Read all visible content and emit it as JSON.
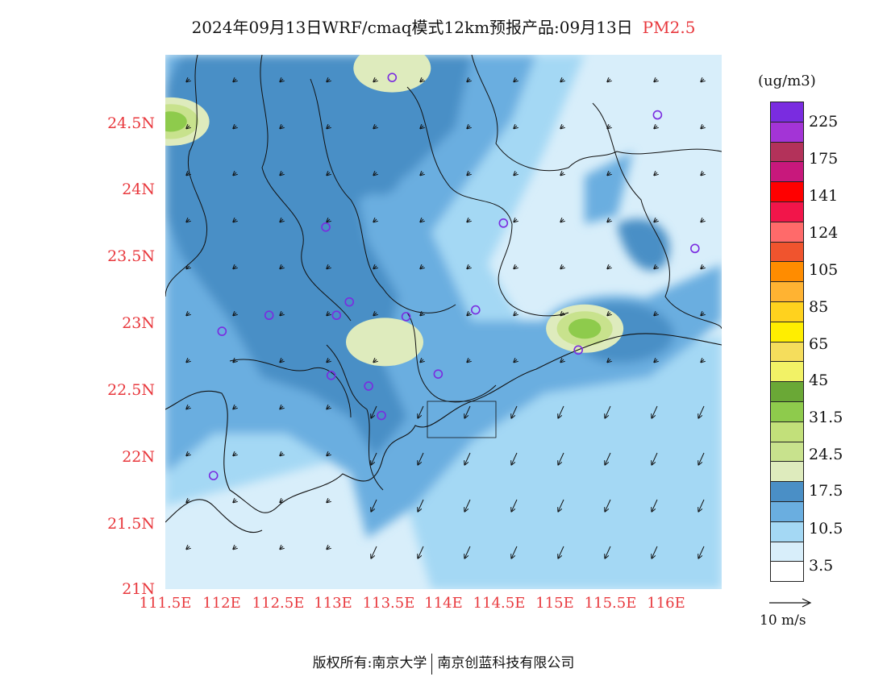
{
  "title": {
    "main": "2024年09月13日WRF/cmaq模式12km预报产品:09月13日",
    "pollutant": "PM2.5"
  },
  "axes": {
    "lat_labels": [
      "24.5N",
      "24N",
      "23.5N",
      "23N",
      "22.5N",
      "22N",
      "21.5N",
      "21N"
    ],
    "lon_labels": [
      "111.5E",
      "112E",
      "112.5E",
      "113E",
      "113.5E",
      "114E",
      "114.5E",
      "115E",
      "115.5E",
      "116E"
    ]
  },
  "map": {
    "extent": {
      "lon": [
        111.5,
        116.7
      ],
      "lat": [
        21.0,
        25.0
      ]
    },
    "stations": [
      {
        "lon": 113.62,
        "lat": 24.83
      },
      {
        "lon": 116.1,
        "lat": 24.55
      },
      {
        "lon": 113.0,
        "lat": 23.71
      },
      {
        "lon": 114.66,
        "lat": 23.74
      },
      {
        "lon": 116.45,
        "lat": 23.55
      },
      {
        "lon": 113.22,
        "lat": 23.15
      },
      {
        "lon": 112.47,
        "lat": 23.05
      },
      {
        "lon": 113.1,
        "lat": 23.05
      },
      {
        "lon": 113.75,
        "lat": 23.04
      },
      {
        "lon": 114.4,
        "lat": 23.09
      },
      {
        "lon": 112.03,
        "lat": 22.93
      },
      {
        "lon": 115.36,
        "lat": 22.79
      },
      {
        "lon": 113.05,
        "lat": 22.6
      },
      {
        "lon": 113.4,
        "lat": 22.52
      },
      {
        "lon": 114.05,
        "lat": 22.61
      },
      {
        "lon": 113.52,
        "lat": 22.3
      },
      {
        "lon": 111.95,
        "lat": 21.85
      }
    ],
    "hotspots": [
      {
        "lon": 115.42,
        "lat": 22.95,
        "level": 3
      },
      {
        "lon": 113.55,
        "lat": 22.85,
        "level": 1
      },
      {
        "lon": 111.55,
        "lat": 24.5,
        "level": 3
      },
      {
        "lon": 113.62,
        "lat": 24.9,
        "level": 1
      }
    ]
  },
  "colorbar": {
    "units": "(ug/m3)",
    "colors": [
      "#7a2ce0",
      "#a334d6",
      "#b3325a",
      "#c8187c",
      "#ff0000",
      "#f2154a",
      "#ff6a6a",
      "#f0542e",
      "#ff8c00",
      "#ffb332",
      "#ffd21e",
      "#ffee00",
      "#f5dd5c",
      "#f2f266",
      "#6aa836",
      "#8ecb4c",
      "#c2e07a",
      "#c8e28d",
      "#deebbd",
      "#4a8fc6",
      "#6aaee0",
      "#a4d8f4",
      "#d8eefa",
      "#ffffff"
    ],
    "labels": [
      "225",
      "175",
      "141",
      "124",
      "105",
      "85",
      "65",
      "45",
      "31.5",
      "24.5",
      "17.5",
      "10.5",
      "3.5"
    ]
  },
  "wind": {
    "reference_label": "10 m/s"
  },
  "footer": {
    "left": "版权所有:南京大学",
    "right": "南京创蓝科技有限公司"
  }
}
